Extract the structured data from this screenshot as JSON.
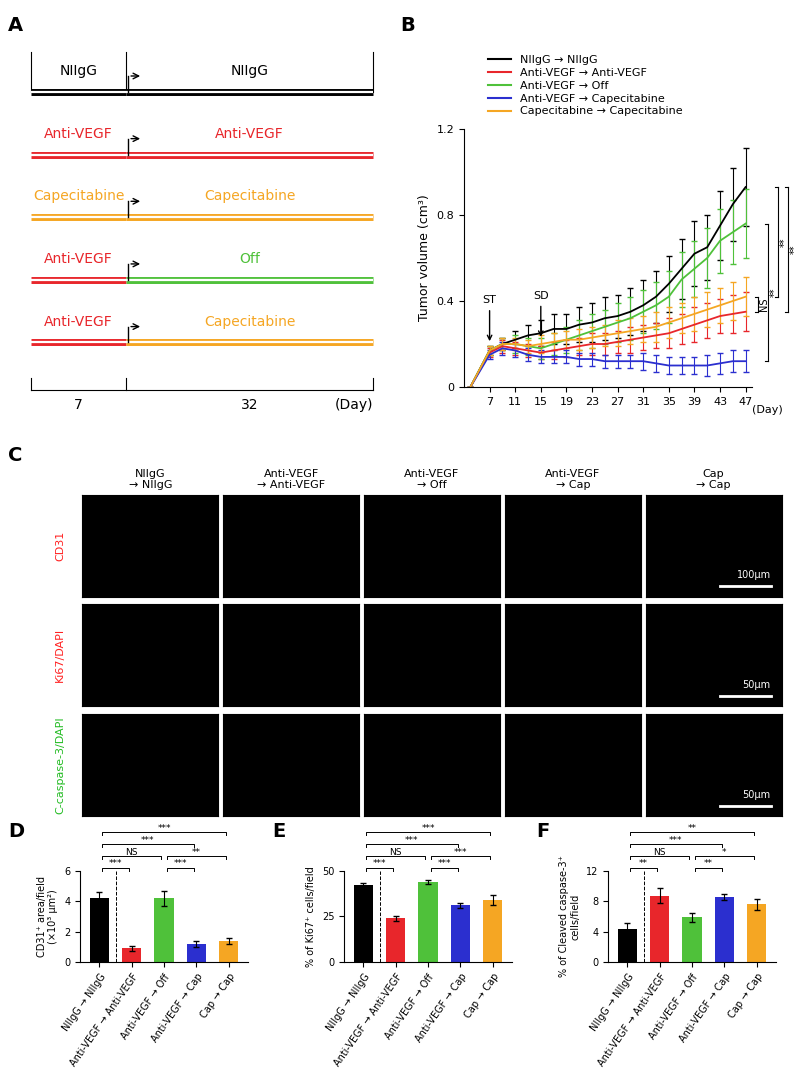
{
  "schematic": {
    "panel_label": "A",
    "rows": [
      {
        "before": {
          "label": "NIIgG",
          "color": "#000000"
        },
        "after": {
          "label": "NIIgG",
          "color": "#000000"
        }
      },
      {
        "before": {
          "label": "Anti-VEGF",
          "color": "#e8262b"
        },
        "after": {
          "label": "Anti-VEGF",
          "color": "#e8262b"
        }
      },
      {
        "before": {
          "label": "Capecitabine",
          "color": "#f5a623"
        },
        "after": {
          "label": "Capecitabine",
          "color": "#f5a623"
        }
      },
      {
        "before": {
          "label": "Anti-VEGF",
          "color": "#e8262b"
        },
        "after": {
          "label": "Off",
          "color": "#4fc13a"
        }
      },
      {
        "before": {
          "label": "Anti-VEGF",
          "color": "#e8262b"
        },
        "after": {
          "label": "Capecitabine",
          "color": "#f5a623"
        }
      }
    ],
    "durations": [
      7,
      32
    ],
    "unit": "(Day)"
  },
  "chart_data": [
    {
      "panel_label": "B",
      "type": "line",
      "y_label": "Tumor volume (cm³)",
      "x_unit_label": "(Day)",
      "x": [
        4,
        7,
        9,
        11,
        13,
        15,
        17,
        19,
        21,
        23,
        25,
        27,
        29,
        31,
        33,
        35,
        37,
        39,
        41,
        43,
        45,
        47
      ],
      "xlim": [
        3,
        48
      ],
      "xticks": [
        7,
        11,
        15,
        19,
        23,
        27,
        31,
        35,
        39,
        43,
        47
      ],
      "ylim": [
        0,
        1.2
      ],
      "yticks": [
        0,
        0.4,
        0.8,
        1.2
      ],
      "legend": "above",
      "series": [
        {
          "name": "NIIgG → NIIgG",
          "color": "#000000",
          "values": [
            0,
            0.17,
            0.2,
            0.22,
            0.24,
            0.25,
            0.27,
            0.27,
            0.29,
            0.3,
            0.32,
            0.33,
            0.35,
            0.38,
            0.42,
            0.48,
            0.55,
            0.62,
            0.65,
            0.75,
            0.85,
            0.93
          ],
          "errors": [
            0,
            0.02,
            0.03,
            0.04,
            0.05,
            0.06,
            0.07,
            0.07,
            0.08,
            0.09,
            0.1,
            0.1,
            0.11,
            0.12,
            0.12,
            0.13,
            0.14,
            0.15,
            0.15,
            0.16,
            0.17,
            0.18
          ]
        },
        {
          "name": "Anti-VEGF → Anti-VEGF",
          "color": "#e8262b",
          "values": [
            0,
            0.16,
            0.19,
            0.18,
            0.17,
            0.16,
            0.17,
            0.18,
            0.19,
            0.2,
            0.2,
            0.21,
            0.22,
            0.23,
            0.24,
            0.25,
            0.27,
            0.29,
            0.31,
            0.33,
            0.34,
            0.35
          ],
          "errors": [
            0,
            0.02,
            0.03,
            0.03,
            0.03,
            0.03,
            0.04,
            0.04,
            0.04,
            0.05,
            0.05,
            0.05,
            0.06,
            0.06,
            0.06,
            0.07,
            0.07,
            0.08,
            0.08,
            0.08,
            0.09,
            0.09
          ]
        },
        {
          "name": "Anti-VEGF → Off",
          "color": "#4fc13a",
          "values": [
            0,
            0.17,
            0.2,
            0.2,
            0.19,
            0.18,
            0.2,
            0.22,
            0.24,
            0.26,
            0.28,
            0.3,
            0.32,
            0.35,
            0.38,
            0.42,
            0.5,
            0.55,
            0.6,
            0.68,
            0.72,
            0.76
          ],
          "errors": [
            0,
            0.02,
            0.03,
            0.04,
            0.04,
            0.05,
            0.05,
            0.06,
            0.07,
            0.08,
            0.08,
            0.09,
            0.1,
            0.1,
            0.11,
            0.12,
            0.13,
            0.13,
            0.14,
            0.15,
            0.15,
            0.16
          ]
        },
        {
          "name": "Anti-VEGF → Capecitabine",
          "color": "#2b2fcf",
          "values": [
            0,
            0.15,
            0.18,
            0.17,
            0.15,
            0.14,
            0.14,
            0.14,
            0.13,
            0.13,
            0.12,
            0.12,
            0.12,
            0.12,
            0.11,
            0.1,
            0.1,
            0.1,
            0.1,
            0.11,
            0.12,
            0.12
          ],
          "errors": [
            0,
            0.02,
            0.03,
            0.03,
            0.03,
            0.03,
            0.03,
            0.03,
            0.03,
            0.03,
            0.03,
            0.03,
            0.03,
            0.04,
            0.04,
            0.04,
            0.04,
            0.04,
            0.05,
            0.05,
            0.05,
            0.05
          ]
        },
        {
          "name": "Capecitabine → Capecitabine",
          "color": "#f5a623",
          "values": [
            0,
            0.17,
            0.2,
            0.2,
            0.19,
            0.2,
            0.21,
            0.22,
            0.22,
            0.23,
            0.24,
            0.25,
            0.26,
            0.27,
            0.28,
            0.3,
            0.32,
            0.34,
            0.36,
            0.38,
            0.4,
            0.42
          ],
          "errors": [
            0,
            0.02,
            0.03,
            0.03,
            0.03,
            0.04,
            0.04,
            0.04,
            0.05,
            0.05,
            0.05,
            0.06,
            0.06,
            0.06,
            0.07,
            0.07,
            0.07,
            0.08,
            0.08,
            0.08,
            0.09,
            0.09
          ]
        }
      ],
      "annotations": [
        {
          "text": "ST",
          "x": 7,
          "y": 0.2
        },
        {
          "text": "SD",
          "x": 15,
          "y": 0.22
        }
      ],
      "significance": [
        {
          "from": "Anti-VEGF → Anti-VEGF",
          "to": "Capecitabine → Capecitabine",
          "label": "NS"
        },
        {
          "from": "Anti-VEGF → Off",
          "to": "Anti-VEGF → Capecitabine",
          "label": "**"
        },
        {
          "from": "NIIgG → NIIgG",
          "to": "Capecitabine → Capecitabine",
          "label": "**"
        },
        {
          "from": "NIIgG → NIIgG",
          "to": "Anti-VEGF → Anti-VEGF",
          "label": "**"
        }
      ]
    },
    {
      "panel_label": "D",
      "type": "bar",
      "y_label": "CD31⁺ area/field\n(×10³ µm²)",
      "categories": [
        "NIIgG → NIIgG",
        "Anti-VEGF → Anti-VEGF",
        "Anti-VEGF → Off",
        "Anti-VEGF → Cap",
        "Cap → Cap"
      ],
      "values": [
        4.2,
        0.9,
        4.2,
        1.2,
        1.4
      ],
      "errors": [
        0.4,
        0.15,
        0.5,
        0.2,
        0.2
      ],
      "colors": [
        "#000000",
        "#e8262b",
        "#4fc13a",
        "#2b2fcf",
        "#f5a623"
      ],
      "ylim": [
        0,
        6
      ],
      "yticks": [
        0,
        2,
        4,
        6
      ],
      "significance": [
        {
          "from": "NIIgG → NIIgG",
          "to": "Anti-VEGF → Anti-VEGF",
          "label": "***"
        },
        {
          "from": "NIIgG → NIIgG",
          "to": "Anti-VEGF → Off",
          "label": "NS"
        },
        {
          "from": "NIIgG → NIIgG",
          "to": "Anti-VEGF → Cap",
          "label": "***"
        },
        {
          "from": "NIIgG → NIIgG",
          "to": "Cap → Cap",
          "label": "***"
        },
        {
          "from": "Anti-VEGF → Off",
          "to": "Anti-VEGF → Cap",
          "label": "***"
        },
        {
          "from": "Anti-VEGF → Off",
          "to": "Cap → Cap",
          "label": "**"
        }
      ]
    },
    {
      "panel_label": "E",
      "type": "bar",
      "y_label": "% of Ki67⁺ cells/field",
      "categories": [
        "NIIgG → NIIgG",
        "Anti-VEGF → Anti-VEGF",
        "Anti-VEGF → Off",
        "Anti-VEGF → Cap",
        "Cap → Cap"
      ],
      "values": [
        42,
        24,
        44,
        31,
        34
      ],
      "errors": [
        1.5,
        1.5,
        1,
        1.5,
        2.5
      ],
      "colors": [
        "#000000",
        "#e8262b",
        "#4fc13a",
        "#2b2fcf",
        "#f5a623"
      ],
      "ylim": [
        0,
        50
      ],
      "yticks": [
        0,
        25,
        50
      ],
      "significance": [
        {
          "from": "NIIgG → NIIgG",
          "to": "Anti-VEGF → Anti-VEGF",
          "label": "***"
        },
        {
          "from": "NIIgG → NIIgG",
          "to": "Anti-VEGF → Off",
          "label": "NS"
        },
        {
          "from": "NIIgG → NIIgG",
          "to": "Anti-VEGF → Cap",
          "label": "***"
        },
        {
          "from": "NIIgG → NIIgG",
          "to": "Cap → Cap",
          "label": "***"
        },
        {
          "from": "Anti-VEGF → Off",
          "to": "Anti-VEGF → Cap",
          "label": "***"
        },
        {
          "from": "Anti-VEGF → Off",
          "to": "Cap → Cap",
          "label": "***"
        }
      ]
    },
    {
      "panel_label": "F",
      "type": "bar",
      "y_label": "% of Cleaved caspase-3⁺\ncells/field",
      "categories": [
        "NIIgG → NIIgG",
        "Anti-VEGF → Anti-VEGF",
        "Anti-VEGF → Off",
        "Anti-VEGF → Cap",
        "Cap → Cap"
      ],
      "values": [
        4.3,
        8.7,
        5.9,
        8.5,
        7.6
      ],
      "errors": [
        0.8,
        1.0,
        0.6,
        0.4,
        0.7
      ],
      "colors": [
        "#000000",
        "#e8262b",
        "#4fc13a",
        "#2b2fcf",
        "#f5a623"
      ],
      "ylim": [
        0,
        12
      ],
      "yticks": [
        0,
        4,
        8,
        12
      ],
      "significance": [
        {
          "from": "NIIgG → NIIgG",
          "to": "Anti-VEGF → Anti-VEGF",
          "label": "**"
        },
        {
          "from": "NIIgG → NIIgG",
          "to": "Anti-VEGF → Off",
          "label": "NS"
        },
        {
          "from": "NIIgG → NIIgG",
          "to": "Anti-VEGF → Cap",
          "label": "***"
        },
        {
          "from": "NIIgG → NIIgG",
          "to": "Cap → Cap",
          "label": "**"
        },
        {
          "from": "Anti-VEGF → Off",
          "to": "Anti-VEGF → Cap",
          "label": "**"
        },
        {
          "from": "Anti-VEGF → Off",
          "to": "Cap → Cap",
          "label": "*"
        }
      ]
    }
  ],
  "images": {
    "panel_label": "C",
    "columns": [
      "NIIgG\n→ NIIgG",
      "Anti-VEGF\n→ Anti-VEGF",
      "Anti-VEGF\n→ Off",
      "Anti-VEGF\n→ Cap",
      "Cap\n→ Cap"
    ],
    "rows": [
      {
        "label": "CD31",
        "color": "#ff2020",
        "scale_bar": "100µm"
      },
      {
        "label": "Ki67/DAPI",
        "color": "#ff2020",
        "scale_bar": "50µm"
      },
      {
        "label": "C-caspase-3/DAPI",
        "color": "#22bb22",
        "scale_bar": "50µm"
      }
    ]
  }
}
